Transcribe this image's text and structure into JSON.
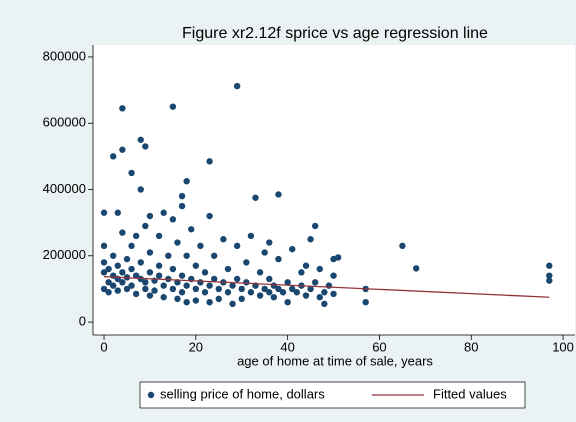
{
  "chart_data": {
    "type": "scatter",
    "title": "Figure xr2.12f sprice vs age regression line",
    "x_label": "age of home at time of sale, years",
    "xlim": [
      -2.4,
      102.6
    ],
    "ylim": [
      -39000,
      836000
    ],
    "xticks": [
      0,
      20,
      40,
      60,
      80,
      100
    ],
    "yticks": [
      0,
      200000,
      400000,
      600000,
      800000
    ],
    "series": [
      {
        "name": "selling price of home, dollars",
        "color": "#1a476f",
        "style": "markers",
        "x": [
          0,
          0,
          0,
          0,
          1,
          1,
          1,
          2,
          2,
          2,
          3,
          3,
          3,
          4,
          4,
          4,
          5,
          5,
          5,
          6,
          6,
          6,
          7,
          7,
          7,
          8,
          8,
          9,
          9,
          9,
          10,
          10,
          10,
          11,
          11,
          12,
          12,
          12,
          13,
          13,
          14,
          14,
          15,
          15,
          15,
          16,
          16,
          16,
          17,
          17,
          17,
          18,
          18,
          18,
          19,
          19,
          20,
          20,
          20,
          21,
          21,
          22,
          22,
          23,
          23,
          23,
          24,
          24,
          25,
          25,
          26,
          26,
          27,
          27,
          28,
          28,
          29,
          29,
          30,
          30,
          31,
          31,
          32,
          32,
          33,
          34,
          34,
          35,
          35,
          36,
          36,
          37,
          37,
          38,
          38,
          39,
          40,
          40,
          41,
          41,
          42,
          43,
          43,
          44,
          44,
          45,
          46,
          47,
          47,
          48,
          48,
          49,
          50,
          50,
          29,
          15,
          4,
          8,
          9,
          2,
          4,
          23,
          6,
          8,
          18,
          3,
          0,
          13,
          10,
          17,
          38,
          33,
          65,
          68,
          97,
          97,
          97,
          57,
          57,
          50,
          51,
          45,
          46,
          36
        ],
        "y": [
          100000,
          150000,
          180000,
          230000,
          120000,
          90000,
          160000,
          140000,
          110000,
          200000,
          130000,
          95000,
          170000,
          150000,
          120000,
          270000,
          135000,
          100000,
          190000,
          160000,
          110000,
          230000,
          140000,
          85000,
          260000,
          130000,
          180000,
          120000,
          100000,
          290000,
          150000,
          80000,
          210000,
          125000,
          95000,
          140000,
          170000,
          260000,
          110000,
          75000,
          130000,
          200000,
          100000,
          160000,
          310000,
          120000,
          70000,
          240000,
          140000,
          90000,
          350000,
          110000,
          60000,
          200000,
          130000,
          280000,
          100000,
          65000,
          170000,
          120000,
          230000,
          90000,
          150000,
          110000,
          60000,
          320000,
          130000,
          200000,
          100000,
          70000,
          120000,
          250000,
          90000,
          160000,
          110000,
          55000,
          130000,
          230000,
          100000,
          70000,
          120000,
          180000,
          90000,
          260000,
          110000,
          80000,
          150000,
          100000,
          210000,
          90000,
          130000,
          110000,
          75000,
          100000,
          190000,
          90000,
          120000,
          60000,
          100000,
          220000,
          90000,
          110000,
          150000,
          80000,
          170000,
          100000,
          120000,
          75000,
          160000,
          90000,
          55000,
          110000,
          85000,
          140000,
          712000,
          650000,
          645000,
          550000,
          530000,
          500000,
          520000,
          485000,
          450000,
          400000,
          425000,
          330000,
          330000,
          330000,
          320000,
          380000,
          385000,
          375000,
          230000,
          162000,
          170000,
          140000,
          125000,
          100000,
          60000,
          190000,
          195000,
          250000,
          290000,
          240000
        ]
      },
      {
        "name": "Fitted values",
        "color": "#90353b",
        "style": "line",
        "x": [
          0,
          97
        ],
        "y": [
          137000,
          75000
        ]
      }
    ]
  }
}
